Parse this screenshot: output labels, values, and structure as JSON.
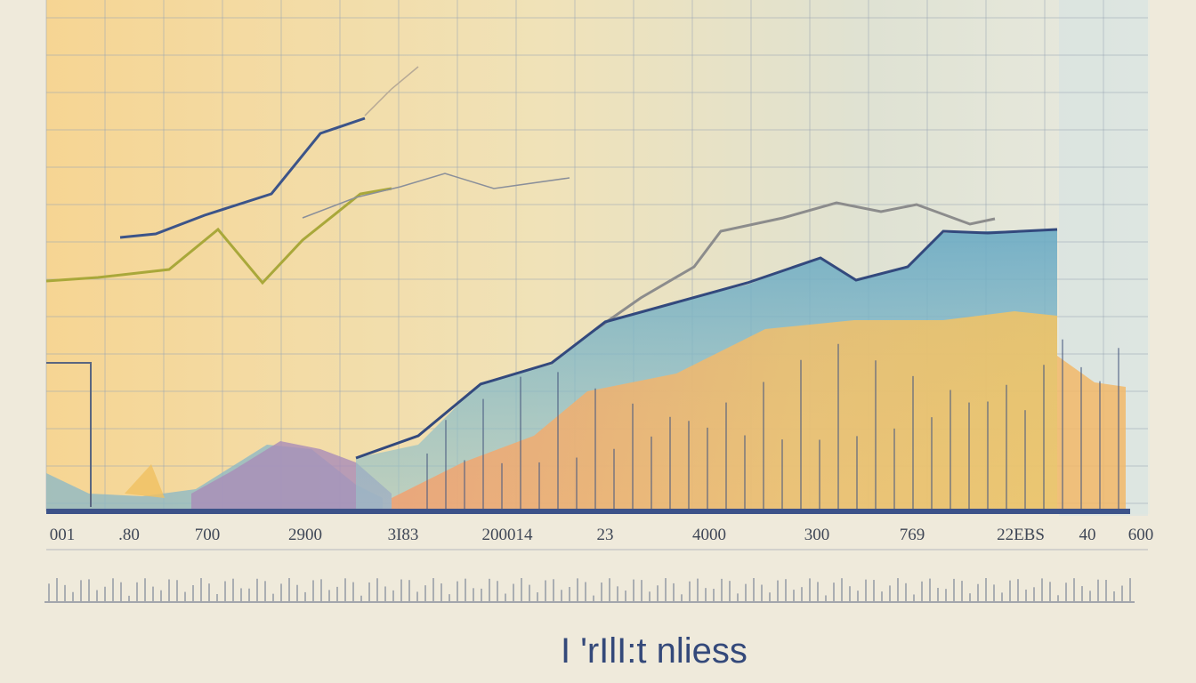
{
  "axis_labels": [
    "001",
    ".80",
    "700",
    "2900",
    "3I83",
    "200014",
    "23",
    "4000",
    "300",
    "769",
    "22EBS",
    "40",
    "600"
  ],
  "caption": "I 'rIlI:t nliess"
}
